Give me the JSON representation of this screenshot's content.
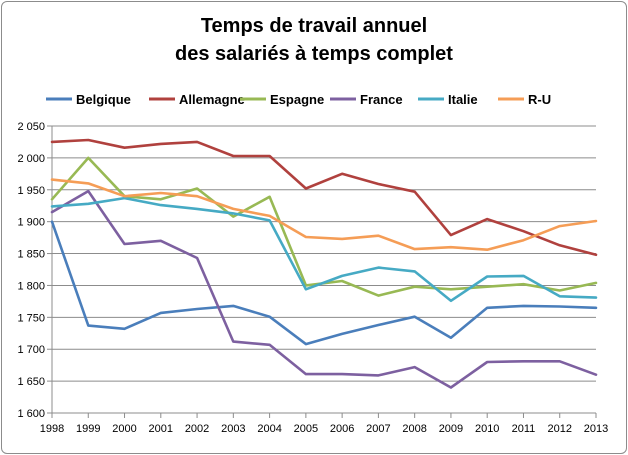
{
  "chart_data": {
    "type": "line",
    "title": [
      "Temps de travail annuel",
      "des salariés à temps complet"
    ],
    "xlabel": "",
    "ylabel": "",
    "x": [
      "1998",
      "1999",
      "2000",
      "2001",
      "2002",
      "2003",
      "2004",
      "2005",
      "2006",
      "2007",
      "2008",
      "2009",
      "2010",
      "2011",
      "2012",
      "2013"
    ],
    "ylim": [
      1600,
      2050
    ],
    "yticks": [
      1600,
      1650,
      1700,
      1750,
      1800,
      1850,
      1900,
      1950,
      2000,
      2050
    ],
    "ytick_labels": [
      "1 600",
      "1 650",
      "1 700",
      "1 750",
      "1 800",
      "1 850",
      "1 900",
      "1 950",
      "2 000",
      "2 050"
    ],
    "grid": "horizontal",
    "legend": "top",
    "series": [
      {
        "name": "Belgique",
        "color": "#4a7ebb",
        "values": [
          1900,
          1737,
          1732,
          1757,
          1763,
          1768,
          1751,
          1708,
          1724,
          1738,
          1751,
          1718,
          1765,
          1768,
          1767,
          1765
        ]
      },
      {
        "name": "Allemagne",
        "color": "#b0413e",
        "values": [
          2025,
          2028,
          2016,
          2022,
          2025,
          2003,
          2003,
          1952,
          1975,
          1959,
          1947,
          1879,
          1904,
          1885,
          1863,
          1848
        ]
      },
      {
        "name": "Espagne",
        "color": "#98b954",
        "values": [
          1935,
          2000,
          1940,
          1935,
          1952,
          1908,
          1939,
          1800,
          1807,
          1784,
          1798,
          1794,
          1798,
          1802,
          1792,
          1804
        ]
      },
      {
        "name": "France",
        "color": "#7d60a0",
        "values": [
          1915,
          1948,
          1865,
          1870,
          1843,
          1712,
          1707,
          1661,
          1661,
          1659,
          1672,
          1640,
          1680,
          1681,
          1681,
          1660
        ]
      },
      {
        "name": "Italie",
        "color": "#46aac4",
        "values": [
          1924,
          1928,
          1937,
          1926,
          1920,
          1913,
          1902,
          1794,
          1815,
          1828,
          1822,
          1776,
          1814,
          1815,
          1783,
          1781
        ]
      },
      {
        "name": "R-U",
        "color": "#f59d56",
        "values": [
          1966,
          1960,
          1940,
          1945,
          1940,
          1920,
          1909,
          1876,
          1873,
          1878,
          1857,
          1860,
          1856,
          1871,
          1893,
          1901
        ]
      }
    ]
  }
}
